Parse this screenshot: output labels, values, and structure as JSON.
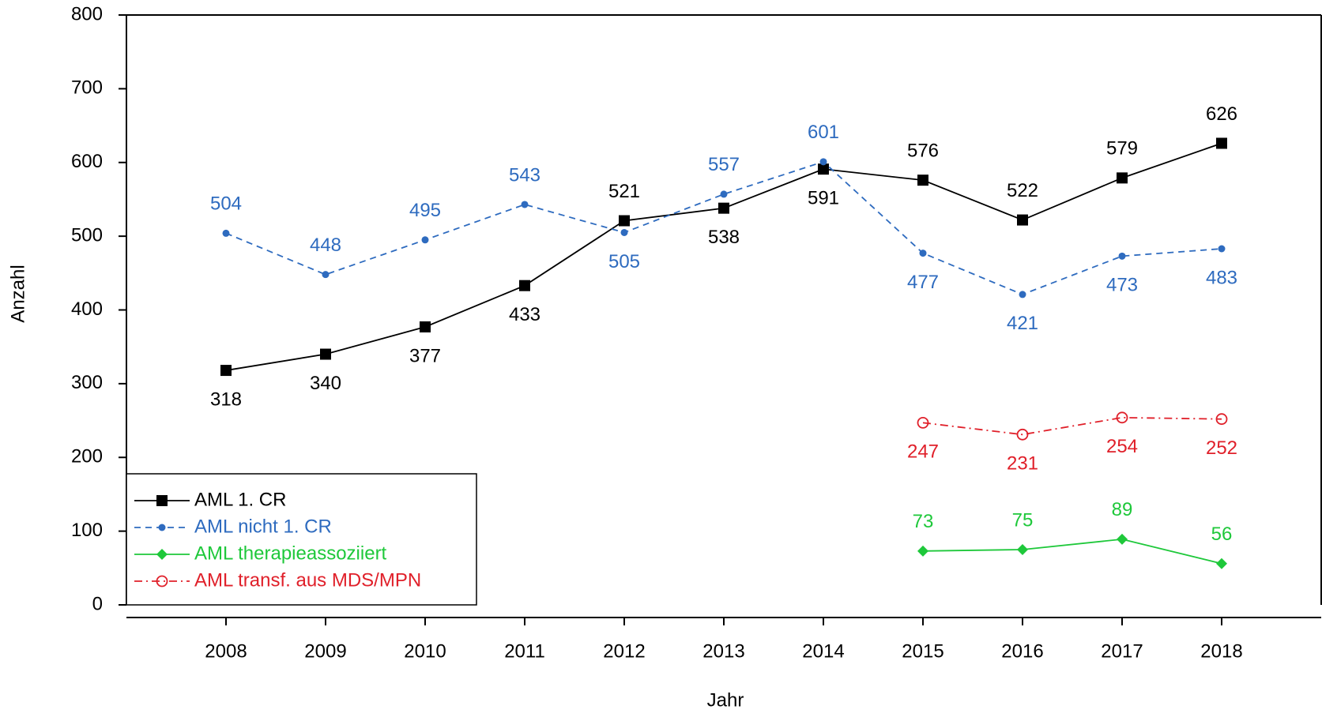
{
  "chart_data": {
    "type": "line",
    "xlabel": "Jahr",
    "ylabel": "Anzahl",
    "x": [
      2008,
      2009,
      2010,
      2011,
      2012,
      2013,
      2014,
      2015,
      2016,
      2017,
      2018
    ],
    "series": [
      {
        "name": "AML 1. CR",
        "color": "#000000",
        "values": [
          318,
          340,
          377,
          433,
          521,
          538,
          591,
          576,
          522,
          579,
          626
        ]
      },
      {
        "name": "AML nicht 1. CR",
        "color": "#2e6bbf",
        "values": [
          504,
          448,
          495,
          543,
          505,
          557,
          601,
          477,
          421,
          473,
          483
        ]
      },
      {
        "name": "AML therapieassoziiert",
        "color": "#1ec83a",
        "values": [
          null,
          null,
          null,
          null,
          null,
          null,
          null,
          73,
          75,
          89,
          56
        ]
      },
      {
        "name": "AML transf. aus MDS/MPN",
        "color": "#e0202a",
        "values": [
          null,
          null,
          null,
          null,
          null,
          null,
          null,
          247,
          231,
          254,
          252
        ]
      }
    ],
    "xlim": [
      2007,
      2019
    ],
    "xticks": [
      2008,
      2009,
      2010,
      2011,
      2012,
      2013,
      2014,
      2015,
      2016,
      2017,
      2018
    ],
    "ylim": [
      0,
      800
    ],
    "yticks": [
      0,
      100,
      200,
      300,
      400,
      500,
      600,
      700,
      800
    ],
    "legend": "bottom-left"
  }
}
